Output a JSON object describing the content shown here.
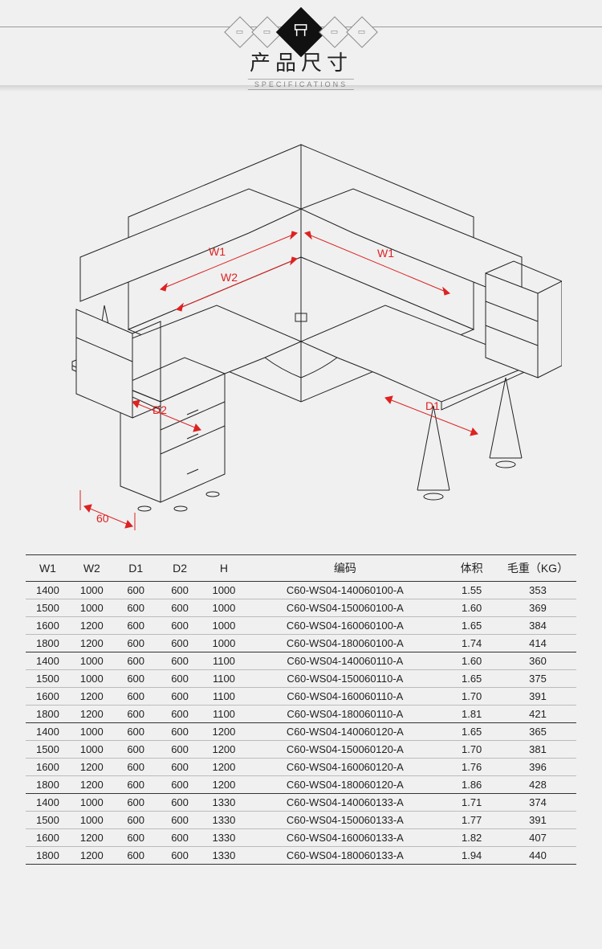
{
  "header": {
    "title_cn": "产品尺寸",
    "title_en": "SPECIFICATIONS",
    "center_icon": "desk-icon"
  },
  "drawing": {
    "dimension_labels": {
      "w1_left": "W1",
      "w2": "W2",
      "w1_right": "W1",
      "d2": "D2",
      "d1": "D1",
      "cabinet_width": "60"
    },
    "line_color": "#222222",
    "dim_color": "#d22222",
    "background": "#f0f0f0"
  },
  "table": {
    "columns": [
      {
        "key": "w1",
        "label": "W1"
      },
      {
        "key": "w2",
        "label": "W2"
      },
      {
        "key": "d1",
        "label": "D1"
      },
      {
        "key": "d2",
        "label": "D2"
      },
      {
        "key": "h",
        "label": "H"
      },
      {
        "key": "code",
        "label": "编码"
      },
      {
        "key": "vol",
        "label": "体积"
      },
      {
        "key": "wt",
        "label": "毛重（KG）"
      }
    ],
    "groups": [
      [
        {
          "w1": "1400",
          "w2": "1000",
          "d1": "600",
          "d2": "600",
          "h": "1000",
          "code": "C60-WS04-140060100-A",
          "vol": "1.55",
          "wt": "353"
        },
        {
          "w1": "1500",
          "w2": "1000",
          "d1": "600",
          "d2": "600",
          "h": "1000",
          "code": "C60-WS04-150060100-A",
          "vol": "1.60",
          "wt": "369"
        },
        {
          "w1": "1600",
          "w2": "1200",
          "d1": "600",
          "d2": "600",
          "h": "1000",
          "code": "C60-WS04-160060100-A",
          "vol": "1.65",
          "wt": "384"
        },
        {
          "w1": "1800",
          "w2": "1200",
          "d1": "600",
          "d2": "600",
          "h": "1000",
          "code": "C60-WS04-180060100-A",
          "vol": "1.74",
          "wt": "414"
        }
      ],
      [
        {
          "w1": "1400",
          "w2": "1000",
          "d1": "600",
          "d2": "600",
          "h": "1100",
          "code": "C60-WS04-140060110-A",
          "vol": "1.60",
          "wt": "360"
        },
        {
          "w1": "1500",
          "w2": "1000",
          "d1": "600",
          "d2": "600",
          "h": "1100",
          "code": "C60-WS04-150060110-A",
          "vol": "1.65",
          "wt": "375"
        },
        {
          "w1": "1600",
          "w2": "1200",
          "d1": "600",
          "d2": "600",
          "h": "1100",
          "code": "C60-WS04-160060110-A",
          "vol": "1.70",
          "wt": "391"
        },
        {
          "w1": "1800",
          "w2": "1200",
          "d1": "600",
          "d2": "600",
          "h": "1100",
          "code": "C60-WS04-180060110-A",
          "vol": "1.81",
          "wt": "421"
        }
      ],
      [
        {
          "w1": "1400",
          "w2": "1000",
          "d1": "600",
          "d2": "600",
          "h": "1200",
          "code": "C60-WS04-140060120-A",
          "vol": "1.65",
          "wt": "365"
        },
        {
          "w1": "1500",
          "w2": "1000",
          "d1": "600",
          "d2": "600",
          "h": "1200",
          "code": "C60-WS04-150060120-A",
          "vol": "1.70",
          "wt": "381"
        },
        {
          "w1": "1600",
          "w2": "1200",
          "d1": "600",
          "d2": "600",
          "h": "1200",
          "code": "C60-WS04-160060120-A",
          "vol": "1.76",
          "wt": "396"
        },
        {
          "w1": "1800",
          "w2": "1200",
          "d1": "600",
          "d2": "600",
          "h": "1200",
          "code": "C60-WS04-180060120-A",
          "vol": "1.86",
          "wt": "428"
        }
      ],
      [
        {
          "w1": "1400",
          "w2": "1000",
          "d1": "600",
          "d2": "600",
          "h": "1330",
          "code": "C60-WS04-140060133-A",
          "vol": "1.71",
          "wt": "374"
        },
        {
          "w1": "1500",
          "w2": "1000",
          "d1": "600",
          "d2": "600",
          "h": "1330",
          "code": "C60-WS04-150060133-A",
          "vol": "1.77",
          "wt": "391"
        },
        {
          "w1": "1600",
          "w2": "1200",
          "d1": "600",
          "d2": "600",
          "h": "1330",
          "code": "C60-WS04-160060133-A",
          "vol": "1.82",
          "wt": "407"
        },
        {
          "w1": "1800",
          "w2": "1200",
          "d1": "600",
          "d2": "600",
          "h": "1330",
          "code": "C60-WS04-180060133-A",
          "vol": "1.94",
          "wt": "440"
        }
      ]
    ]
  }
}
